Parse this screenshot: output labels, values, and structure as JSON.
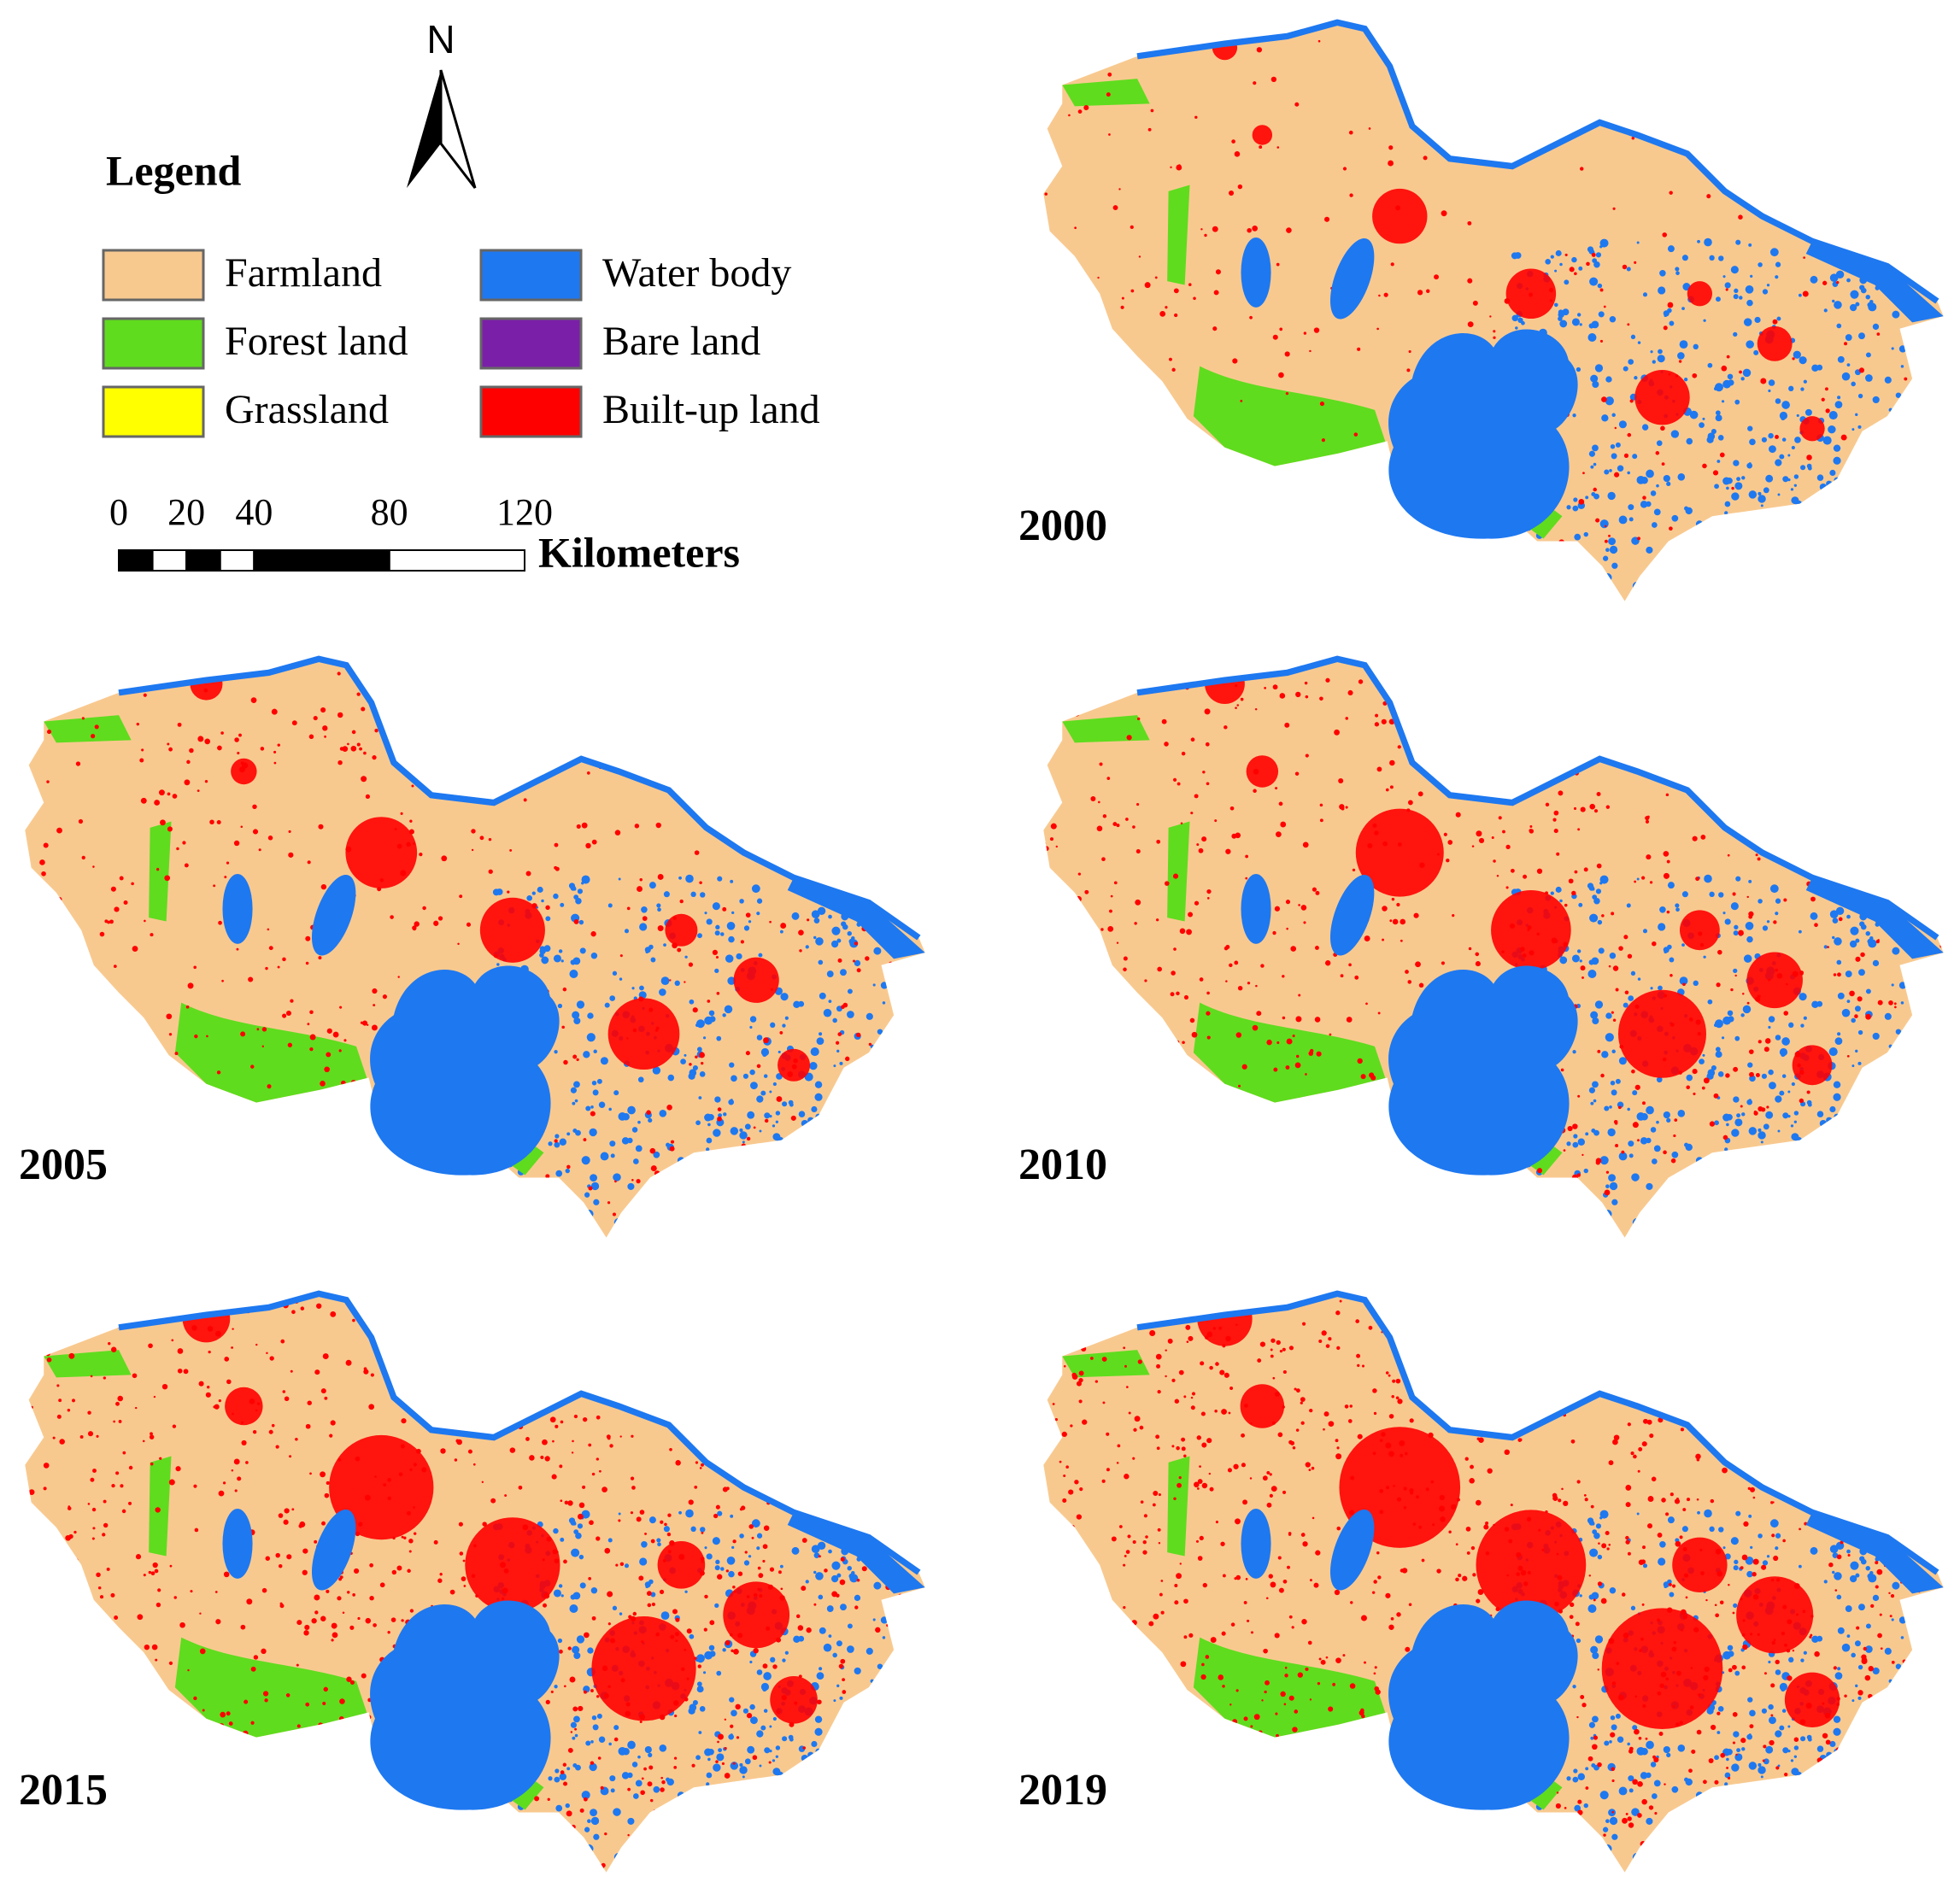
{
  "legend": {
    "title": "Legend",
    "items": [
      {
        "label": "Farmland",
        "color": "#f8c98f"
      },
      {
        "label": "Forest land",
        "color": "#5fdc1e"
      },
      {
        "label": "Grassland",
        "color": "#ffff00"
      },
      {
        "label": "Water body",
        "color": "#1e78f0"
      },
      {
        "label": "Bare land",
        "color": "#7a20a8"
      },
      {
        "label": "Built-up land",
        "color": "#ff0000"
      }
    ]
  },
  "north_arrow": {
    "label": "N"
  },
  "scale_bar": {
    "ticks": [
      0,
      20,
      40,
      80,
      120
    ],
    "unit": "Kilometers"
  },
  "maps": [
    {
      "year": "2000"
    },
    {
      "year": "2005"
    },
    {
      "year": "2010"
    },
    {
      "year": "2015"
    },
    {
      "year": "2019"
    }
  ]
}
